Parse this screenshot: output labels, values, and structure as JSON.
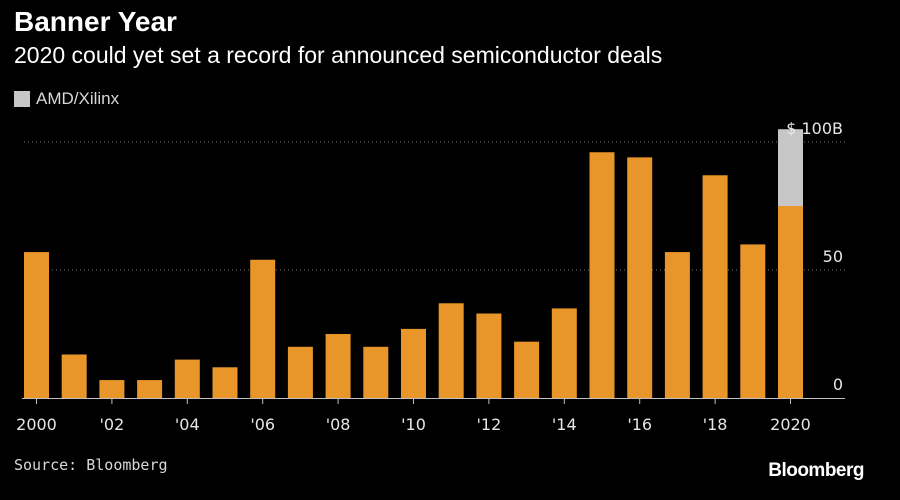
{
  "header": {
    "title": "Banner Year",
    "subtitle": "2020 could yet set a record for announced semiconductor deals"
  },
  "legend": {
    "label": "AMD/Xilinx",
    "color": "#c6c6c6"
  },
  "source": "Source: Bloomberg",
  "logo": "Bloomberg",
  "colors": {
    "bar": "#e8952a",
    "highlight": "#c6c6c6",
    "background": "#000000",
    "grid": "#7a7a7a"
  },
  "chart_data": {
    "type": "bar",
    "stacked": true,
    "categories": [
      "2000",
      "2001",
      "2002",
      "2003",
      "2004",
      "2005",
      "2006",
      "2007",
      "2008",
      "2009",
      "2010",
      "2011",
      "2012",
      "2013",
      "2014",
      "2015",
      "2016",
      "2017",
      "2018",
      "2019",
      "2020"
    ],
    "series": [
      {
        "values": [
          57,
          17,
          7,
          7,
          15,
          12,
          54,
          20,
          25,
          20,
          27,
          37,
          33,
          22,
          35,
          96,
          94,
          57,
          87,
          60,
          75
        ]
      },
      {
        "name": "AMD/Xilinx",
        "values": [
          0,
          0,
          0,
          0,
          0,
          0,
          0,
          0,
          0,
          0,
          0,
          0,
          0,
          0,
          0,
          0,
          0,
          0,
          0,
          0,
          30
        ]
      }
    ],
    "x_tick_labels": [
      "2000",
      "'02",
      "'04",
      "'06",
      "'08",
      "'10",
      "'12",
      "'14",
      "'16",
      "'18",
      "2020"
    ],
    "y_ticks": [
      {
        "value": 0,
        "label": "0"
      },
      {
        "value": 50,
        "label": "50"
      },
      {
        "value": 100,
        "label": "$ 100B"
      }
    ],
    "ylim": [
      0,
      105
    ],
    "y_axis_position": "right",
    "grid": "horizontal-dotted",
    "legend_position": "top-left"
  }
}
